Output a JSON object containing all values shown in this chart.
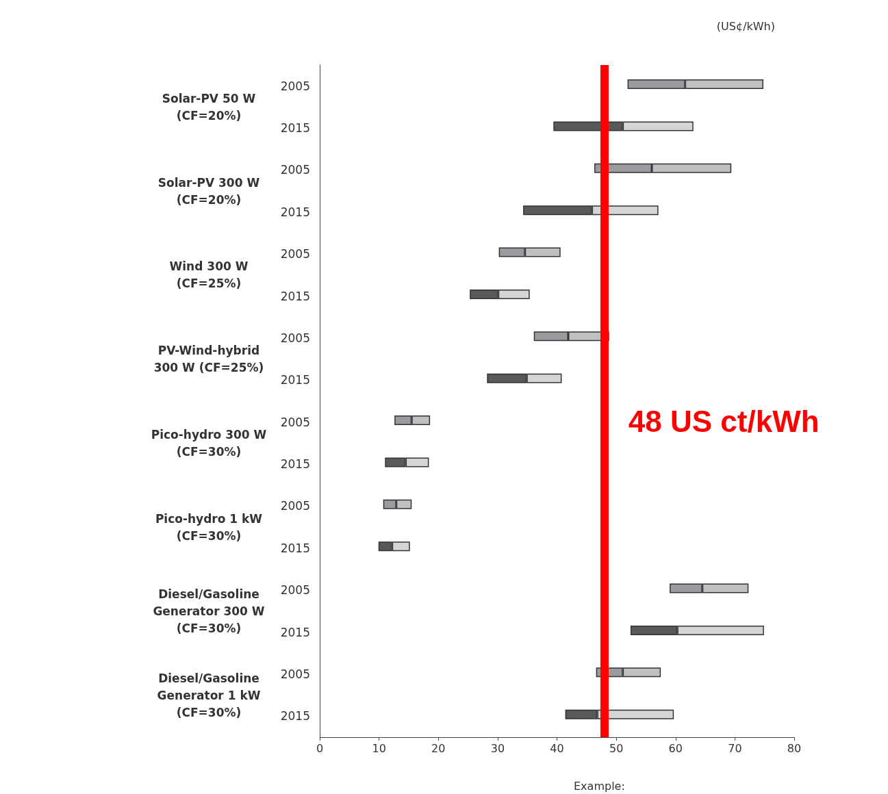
{
  "chart_data": {
    "type": "bar",
    "orientation": "horizontal",
    "xlabel": "(US¢/kWh)",
    "categories": [
      "2005",
      "2015",
      "2005",
      "2015",
      "2005",
      "2015",
      "2005",
      "2015",
      "2005",
      "2015",
      "2005",
      "2015",
      "2005",
      "2015",
      "2005",
      "2015"
    ],
    "series": [
      {
        "base": [
          51.9,
          39.4,
          46.3,
          34.3,
          30.2,
          25.3,
          36.1,
          28.2,
          12.6,
          11.0,
          10.7,
          9.9,
          59.0,
          52.4,
          46.6,
          41.4
        ],
        "values": [
          9.7,
          11.7,
          9.7,
          11.6,
          4.4,
          4.8,
          5.8,
          6.7,
          2.9,
          3.5,
          2.2,
          2.3,
          5.5,
          7.9,
          4.5,
          5.4
        ],
        "colors": [
          "#9a9b9e",
          "#58595b",
          "#9a9b9e",
          "#58595b",
          "#9a9b9e",
          "#58595b",
          "#9a9b9e",
          "#58595b",
          "#9a9b9e",
          "#58595b",
          "#9a9b9e",
          "#58595b",
          "#9a9b9e",
          "#58595b",
          "#9a9b9e",
          "#58595b"
        ]
      },
      {
        "base": [
          61.6,
          51.1,
          56.0,
          45.9,
          34.6,
          30.1,
          41.9,
          34.9,
          15.5,
          14.5,
          12.9,
          12.2,
          64.5,
          60.3,
          51.1,
          46.8
        ],
        "values": [
          13.2,
          11.9,
          13.4,
          11.2,
          6.0,
          5.3,
          6.9,
          5.9,
          3.1,
          3.9,
          2.6,
          3.0,
          7.8,
          14.6,
          6.4,
          12.9
        ],
        "colors": [
          "#bfc0c2",
          "#d4d5d6",
          "#bfc0c2",
          "#d4d5d6",
          "#bfc0c2",
          "#d4d5d6",
          "#bfc0c2",
          "#d4d5d6",
          "#bfc0c2",
          "#d4d5d6",
          "#bfc0c2",
          "#d4d5d6",
          "#bfc0c2",
          "#d4d5d6",
          "#bfc0c2",
          "#d4d5d6"
        ]
      }
    ],
    "xlim": [
      0,
      80
    ],
    "xticks": [
      0,
      10,
      20,
      30,
      40,
      50,
      60,
      70,
      80
    ],
    "ref_lines": [
      {
        "axis": "x",
        "value": 48,
        "label": "48 US ct/kWh",
        "color": "#ff0000"
      }
    ],
    "annotations": [
      "Solar-PV 50 W\n(CF=20%)",
      "Solar-PV 300 W\n(CF=20%)",
      "Wind 300 W\n(CF=25%)",
      "PV-Wind-hybrid\n300 W (CF=25%)",
      "Pico-hydro 300 W\n(CF=30%)",
      "Pico-hydro 1 kW\n(CF=30%)",
      "Diesel/Gasoline\nGenerator 300 W\n(CF=30%)",
      "Diesel/Gasoline\nGenerator 1 kW\n(CF=30%)",
      "Example:"
    ]
  }
}
